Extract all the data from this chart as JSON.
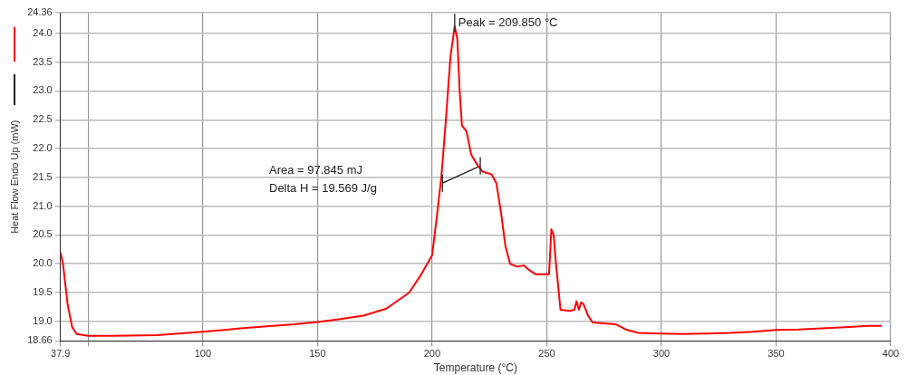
{
  "chart_data": {
    "type": "line",
    "xlabel": "Temperature (°C)",
    "ylabel": "Heat Flow Endo Up (mW)",
    "x": [
      37.9,
      39,
      41,
      43,
      45,
      50,
      60,
      80,
      100,
      120,
      140,
      150,
      160,
      170,
      180,
      190,
      195,
      200,
      202,
      204,
      206,
      208,
      209.85,
      211,
      212,
      213,
      215,
      217,
      220,
      222,
      226,
      228,
      230,
      232,
      234,
      237,
      240,
      242,
      245,
      251,
      252,
      253,
      254,
      256,
      260,
      262,
      263,
      264,
      265,
      266,
      268,
      270,
      280,
      285,
      290,
      300,
      310,
      320,
      330,
      340,
      350,
      360,
      370,
      380,
      390,
      396
    ],
    "series": [
      {
        "color": "#ff0000",
        "values": [
          20.2,
          20.0,
          19.3,
          18.9,
          18.78,
          18.75,
          18.75,
          18.76,
          18.82,
          18.89,
          18.95,
          18.99,
          19.04,
          19.1,
          19.22,
          19.5,
          19.8,
          20.15,
          20.8,
          21.5,
          22.5,
          23.6,
          24.12,
          23.9,
          23.0,
          22.4,
          22.3,
          21.9,
          21.7,
          21.6,
          21.55,
          21.4,
          20.9,
          20.3,
          20.0,
          19.95,
          19.97,
          19.9,
          19.82,
          19.82,
          20.6,
          20.5,
          20.0,
          19.2,
          19.18,
          19.2,
          19.35,
          19.2,
          19.33,
          19.3,
          19.1,
          18.98,
          18.95,
          18.85,
          18.8,
          18.79,
          18.78,
          18.79,
          18.8,
          18.82,
          18.85,
          18.86,
          18.88,
          18.9,
          18.92,
          18.92
        ]
      },
      {
        "type": "line",
        "color": "#222222",
        "x": [
          204.5,
          221
        ],
        "values": [
          21.4,
          21.7
        ],
        "errors": [
          0.15,
          0.15
        ]
      }
    ],
    "xlim": [
      37.9,
      400
    ],
    "xticks": [
      37.9,
      {
        "value": 50,
        "label": null
      },
      100,
      150,
      200,
      250,
      300,
      350,
      400
    ],
    "ylim": [
      18.66,
      24.36
    ],
    "yticks": [
      18.66,
      {
        "value": 19,
        "label": "19.0"
      },
      19.5,
      {
        "value": 20,
        "label": "20.0"
      },
      20.5,
      {
        "value": 21,
        "label": "21.0"
      },
      21.5,
      {
        "value": 22,
        "label": "22.0"
      },
      22.5,
      {
        "value": 23,
        "label": "23.0"
      },
      23.5,
      {
        "value": 24,
        "label": "24.0"
      },
      24.36
    ],
    "annotations": [
      {
        "text": "Peak = 209.850 °C",
        "x": 209.85,
        "y": 24.12
      },
      "Area = 97.845 mJ",
      "Delta H = 19.569 J/g"
    ],
    "grid": true,
    "marker": "none",
    "line_style": "solid",
    "legend": false
  }
}
